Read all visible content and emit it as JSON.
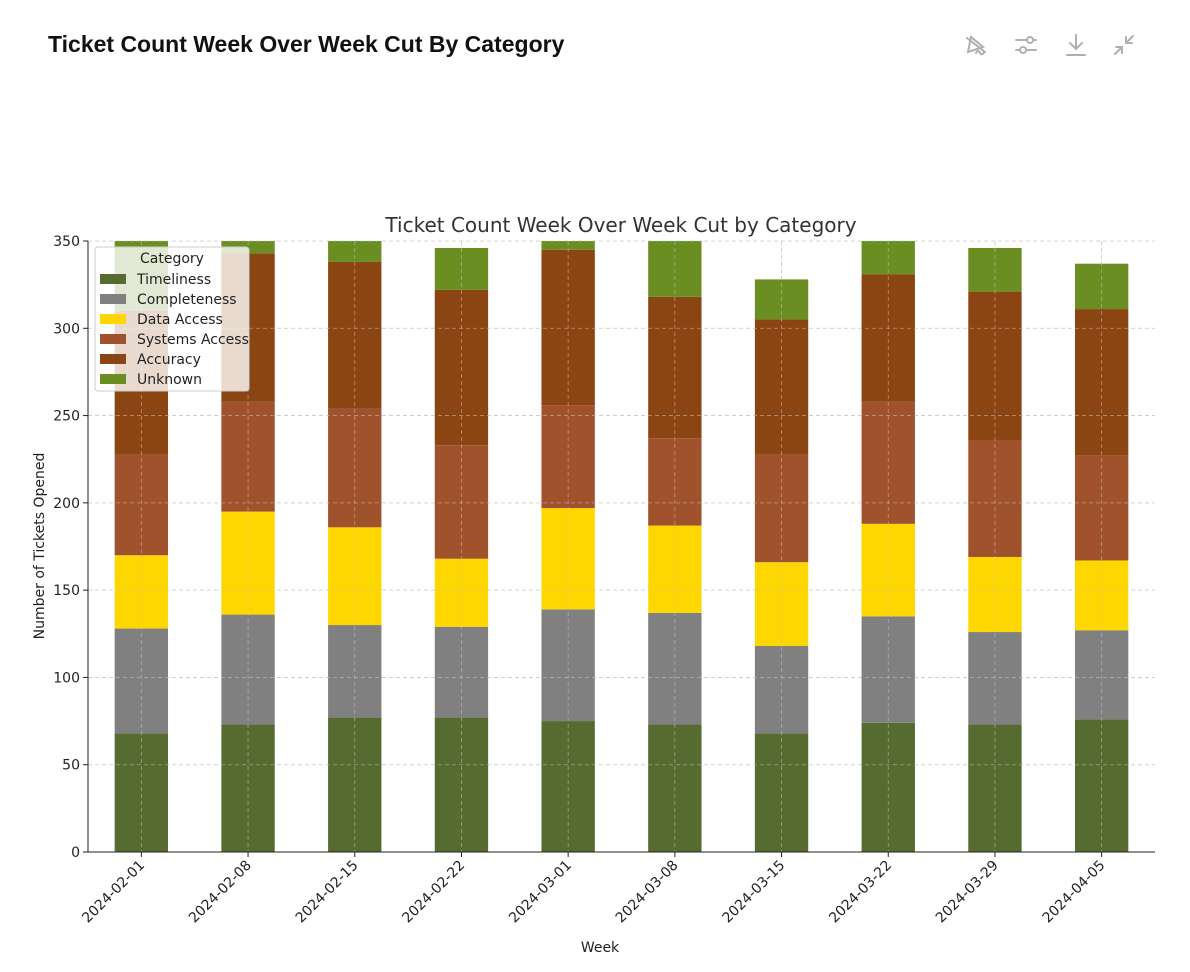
{
  "header": {
    "title": "Ticket Count Week Over Week Cut By Category",
    "tools": [
      {
        "name": "toggle-interactive-icon"
      },
      {
        "name": "customize-sliders-icon"
      },
      {
        "name": "download-icon"
      },
      {
        "name": "collapse-icon"
      }
    ]
  },
  "chart_data": {
    "type": "bar",
    "stacked": true,
    "title": "Ticket Count Week Over Week Cut by Category",
    "xlabel": "Week",
    "ylabel": "Number of Tickets Opened",
    "ylim": [
      0,
      350
    ],
    "yticks": [
      0,
      50,
      100,
      150,
      200,
      250,
      300,
      350
    ],
    "grid": true,
    "legend": {
      "title": "Category",
      "placement": "top-left"
    },
    "categories": [
      "2024-02-01",
      "2024-02-08",
      "2024-02-15",
      "2024-02-22",
      "2024-03-01",
      "2024-03-08",
      "2024-03-15",
      "2024-03-22",
      "2024-03-29",
      "2024-04-05"
    ],
    "series": [
      {
        "name": "Timeliness",
        "color": "#556B2F",
        "values": [
          68,
          73,
          77,
          77,
          75,
          73,
          68,
          74,
          73,
          76
        ]
      },
      {
        "name": "Completeness",
        "color": "#808080",
        "values": [
          60,
          63,
          53,
          52,
          64,
          64,
          50,
          61,
          53,
          51
        ]
      },
      {
        "name": "Data Access",
        "color": "#FFD700",
        "values": [
          42,
          59,
          56,
          39,
          58,
          50,
          48,
          53,
          43,
          40
        ]
      },
      {
        "name": "Systems Access",
        "color": "#A0522D",
        "values": [
          58,
          63,
          68,
          65,
          59,
          50,
          62,
          70,
          67,
          60
        ]
      },
      {
        "name": "Accuracy",
        "color": "#8B4513",
        "values": [
          82,
          85,
          84,
          89,
          89,
          81,
          77,
          73,
          85,
          84
        ]
      },
      {
        "name": "Unknown",
        "color": "#6B8E23",
        "values": [
          45,
          12,
          15,
          24,
          8,
          35,
          23,
          22,
          25,
          26
        ]
      }
    ]
  }
}
